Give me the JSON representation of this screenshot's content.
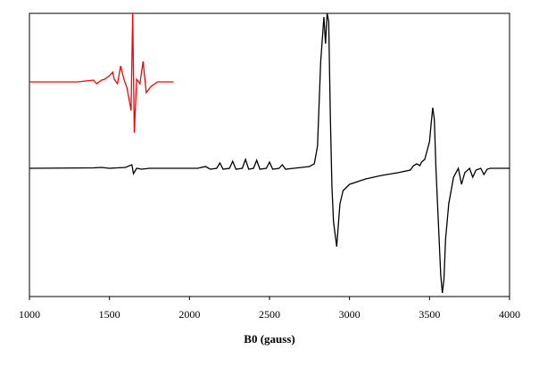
{
  "chart_data": {
    "type": "line",
    "x_label": "B0 (gauss)",
    "xlim": [
      1000,
      4000
    ],
    "xticks": [
      1000,
      1500,
      2000,
      2500,
      3000,
      3500,
      4000
    ],
    "ylim": [
      -144,
      174
    ],
    "series": [
      {
        "color": "#000000",
        "x": [
          1000,
          1400,
          1450,
          1500,
          1600,
          1640,
          1650,
          1670,
          1700,
          1750,
          2050,
          2100,
          2130,
          2170,
          2190,
          2210,
          2250,
          2270,
          2290,
          2330,
          2350,
          2370,
          2400,
          2420,
          2440,
          2480,
          2500,
          2520,
          2560,
          2580,
          2600,
          2650,
          2750,
          2780,
          2800,
          2820,
          2840,
          2850,
          2860,
          2870,
          2880,
          2890,
          2900,
          2920,
          2940,
          2960,
          3000,
          3100,
          3200,
          3300,
          3380,
          3400,
          3420,
          3440,
          3450,
          3470,
          3500,
          3510,
          3520,
          3530,
          3540,
          3555,
          3570,
          3580,
          3590,
          3600,
          3620,
          3650,
          3680,
          3700,
          3720,
          3750,
          3770,
          3790,
          3820,
          3840,
          3860,
          3880,
          4000
        ],
        "values": [
          0,
          0.5,
          1,
          0,
          1,
          4,
          -6,
          0,
          -1,
          0,
          0,
          2,
          -1,
          0,
          6,
          -1,
          0,
          8,
          -1,
          0,
          10,
          -1,
          0,
          9,
          -1,
          0,
          7,
          -1,
          0,
          4,
          -1,
          0,
          2,
          5,
          25,
          120,
          170,
          140,
          174,
          165,
          60,
          -20,
          -60,
          -88,
          -40,
          -25,
          -18,
          -12,
          -8,
          -5,
          -2,
          3,
          5,
          3,
          7,
          10,
          30,
          50,
          68,
          55,
          0,
          -60,
          -120,
          -140,
          -125,
          -80,
          -40,
          -10,
          0,
          -18,
          -5,
          0,
          -10,
          -2,
          0,
          -7,
          -1,
          0,
          0
        ]
      },
      {
        "color": "#ff0000",
        "x": [
          1000,
          1300,
          1350,
          1400,
          1420,
          1450,
          1470,
          1500,
          1520,
          1530,
          1550,
          1570,
          1590,
          1610,
          1620,
          1635,
          1645,
          1655,
          1670,
          1690,
          1710,
          1730,
          1760,
          1800,
          1900
        ],
        "values": [
          97,
          97,
          98,
          99,
          95,
          99,
          100,
          104,
          108,
          100,
          95,
          115,
          100,
          90,
          80,
          65,
          174,
          40,
          100,
          95,
          120,
          85,
          92,
          97,
          97
        ]
      }
    ]
  }
}
